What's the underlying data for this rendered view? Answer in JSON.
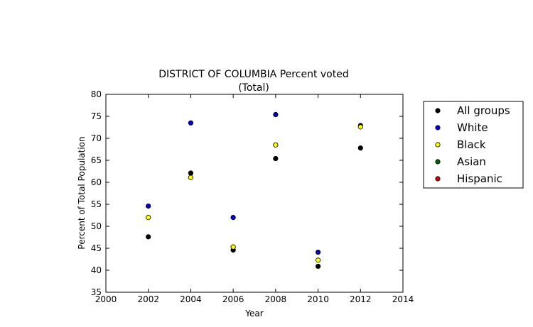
{
  "chart_data": {
    "type": "scatter",
    "title": "DISTRICT OF COLUMBIA Percent voted",
    "subtitle": "(Total)",
    "xlabel": "Year",
    "ylabel": "Percent of Total Population",
    "xlim": [
      2000,
      2014
    ],
    "ylim": [
      35,
      80
    ],
    "xticks": [
      "2000",
      "2002",
      "2004",
      "2006",
      "2008",
      "2010",
      "2012",
      "2014"
    ],
    "yticks": [
      "35",
      "40",
      "45",
      "50",
      "55",
      "60",
      "65",
      "70",
      "75",
      "80"
    ],
    "grid": false,
    "legend_position": "outside-right",
    "series": [
      {
        "name": "All groups",
        "color": "#000000",
        "points": [
          [
            2002,
            47.6
          ],
          [
            2004,
            62.1
          ],
          [
            2006,
            44.6
          ],
          [
            2008,
            65.4
          ],
          [
            2010,
            40.9
          ],
          [
            2012,
            67.8
          ]
        ]
      },
      {
        "name": "White",
        "color": "#0000cc",
        "points": [
          [
            2002,
            54.6
          ],
          [
            2004,
            73.5
          ],
          [
            2006,
            52.0
          ],
          [
            2008,
            75.4
          ],
          [
            2010,
            44.1
          ],
          [
            2012,
            72.9
          ]
        ]
      },
      {
        "name": "Black",
        "color": "#ffff00",
        "points": [
          [
            2002,
            52.0
          ],
          [
            2004,
            61.1
          ],
          [
            2006,
            45.3
          ],
          [
            2008,
            68.5
          ],
          [
            2010,
            42.3
          ],
          [
            2012,
            72.6
          ]
        ]
      },
      {
        "name": "Asian",
        "color": "#006400",
        "points": []
      },
      {
        "name": "Hispanic",
        "color": "#cc0000",
        "points": []
      }
    ]
  }
}
